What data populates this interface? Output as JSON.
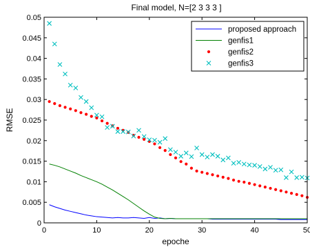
{
  "chart_data": {
    "type": "line",
    "title": "Final model, N=[2  3  3  3 ]",
    "xlabel": "epoche",
    "ylabel": "RMSE",
    "xlim": [
      0,
      50
    ],
    "ylim": [
      0,
      0.05
    ],
    "xticks": [
      "0",
      "10",
      "20",
      "30",
      "40",
      "50"
    ],
    "yticks": [
      "0",
      "0.005",
      "0.01",
      "0.015",
      "0.02",
      "0.025",
      "0.03",
      "0.035",
      "0.04",
      "0.045",
      "0.05"
    ],
    "grid": false,
    "legend_position": "top-right",
    "series": [
      {
        "name": "proposed approach",
        "style": "line",
        "color": "#0000ff",
        "x": [
          1,
          2,
          3,
          4,
          5,
          6,
          7,
          8,
          9,
          10,
          11,
          12,
          13,
          14,
          15,
          16,
          17,
          18,
          19,
          20,
          21,
          22,
          23,
          24,
          25,
          26,
          27,
          28,
          29,
          30,
          31,
          32,
          33,
          34,
          35,
          36,
          37,
          38,
          39,
          40,
          41,
          42,
          43,
          44,
          45,
          46,
          47,
          48,
          49,
          50
        ],
        "y": [
          0.0044,
          0.0039,
          0.0035,
          0.0031,
          0.0028,
          0.0025,
          0.0022,
          0.0019,
          0.0017,
          0.0015,
          0.0014,
          0.0013,
          0.0012,
          0.0013,
          0.0012,
          0.0012,
          0.0013,
          0.0012,
          0.0011,
          0.0013,
          0.0011,
          0.0012,
          0.001,
          0.0011,
          0.001,
          0.001,
          0.001,
          0.001,
          0.001,
          0.001,
          0.001,
          0.0009,
          0.0009,
          0.0009,
          0.0009,
          0.0009,
          0.0009,
          0.0009,
          0.0009,
          0.0009,
          0.0009,
          0.0009,
          0.0009,
          0.0009,
          0.0008,
          0.0008,
          0.0008,
          0.0008,
          0.0008,
          0.0008
        ]
      },
      {
        "name": "genfis1",
        "style": "line",
        "color": "#008000",
        "x": [
          1,
          2,
          3,
          4,
          5,
          6,
          7,
          8,
          9,
          10,
          11,
          12,
          13,
          14,
          15,
          16,
          17,
          18,
          19,
          20,
          21,
          22,
          23,
          24,
          25,
          26,
          27,
          28,
          29,
          30,
          31,
          32,
          33,
          34,
          35,
          36,
          37,
          38,
          39,
          40,
          41,
          42,
          43,
          44,
          45,
          46,
          47,
          48,
          49,
          50
        ],
        "y": [
          0.0143,
          0.014,
          0.0136,
          0.0131,
          0.0126,
          0.0121,
          0.0115,
          0.011,
          0.0105,
          0.01,
          0.0094,
          0.0087,
          0.008,
          0.0072,
          0.0064,
          0.0056,
          0.0047,
          0.0038,
          0.0029,
          0.0021,
          0.0014,
          0.0011,
          0.001,
          0.0011,
          0.001,
          0.001,
          0.001,
          0.001,
          0.001,
          0.001,
          0.001,
          0.001,
          0.001,
          0.001,
          0.001,
          0.001,
          0.001,
          0.001,
          0.001,
          0.001,
          0.001,
          0.001,
          0.001,
          0.001,
          0.001,
          0.001,
          0.001,
          0.001,
          0.001,
          0.001
        ]
      },
      {
        "name": "genfis2",
        "style": "dots",
        "color": "#ff0000",
        "x": [
          1,
          2,
          3,
          4,
          5,
          6,
          7,
          8,
          9,
          10,
          11,
          12,
          13,
          14,
          15,
          16,
          17,
          18,
          19,
          20,
          21,
          22,
          23,
          24,
          25,
          26,
          27,
          28,
          29,
          30,
          31,
          32,
          33,
          34,
          35,
          36,
          37,
          38,
          39,
          40,
          41,
          42,
          43,
          44,
          45,
          46,
          47,
          48,
          49,
          50
        ],
        "y": [
          0.0295,
          0.029,
          0.0285,
          0.0281,
          0.0277,
          0.0273,
          0.0268,
          0.0264,
          0.0259,
          0.0255,
          0.0248,
          0.0242,
          0.0236,
          0.023,
          0.0225,
          0.022,
          0.0213,
          0.0208,
          0.0203,
          0.0198,
          0.0192,
          0.0183,
          0.0176,
          0.0166,
          0.0158,
          0.0149,
          0.0143,
          0.0133,
          0.0126,
          0.0123,
          0.012,
          0.0117,
          0.0114,
          0.0111,
          0.0108,
          0.0104,
          0.0101,
          0.0099,
          0.0096,
          0.0093,
          0.009,
          0.0087,
          0.0084,
          0.0081,
          0.0078,
          0.0075,
          0.0072,
          0.0069,
          0.0066,
          0.0062
        ]
      },
      {
        "name": "genfis3",
        "style": "x",
        "color": "#00bfbf",
        "x": [
          1,
          2,
          3,
          4,
          5,
          6,
          7,
          8,
          9,
          10,
          11,
          12,
          13,
          14,
          15,
          16,
          17,
          18,
          19,
          20,
          21,
          22,
          23,
          24,
          25,
          26,
          27,
          28,
          29,
          30,
          31,
          32,
          33,
          34,
          35,
          36,
          37,
          38,
          39,
          40,
          41,
          42,
          43,
          44,
          45,
          46,
          47,
          48,
          49,
          50
        ],
        "y": [
          0.0485,
          0.0435,
          0.0385,
          0.0362,
          0.0335,
          0.0328,
          0.0305,
          0.0295,
          0.028,
          0.0262,
          0.0258,
          0.0232,
          0.0235,
          0.0222,
          0.0222,
          0.0221,
          0.0211,
          0.0225,
          0.021,
          0.0202,
          0.0201,
          0.0196,
          0.0205,
          0.0178,
          0.0172,
          0.0162,
          0.017,
          0.0161,
          0.0182,
          0.0166,
          0.016,
          0.0166,
          0.0162,
          0.0153,
          0.0158,
          0.0145,
          0.0147,
          0.0143,
          0.0141,
          0.014,
          0.0137,
          0.0131,
          0.0135,
          0.0128,
          0.0129,
          0.011,
          0.0124,
          0.011,
          0.0111,
          0.0109
        ]
      }
    ]
  }
}
